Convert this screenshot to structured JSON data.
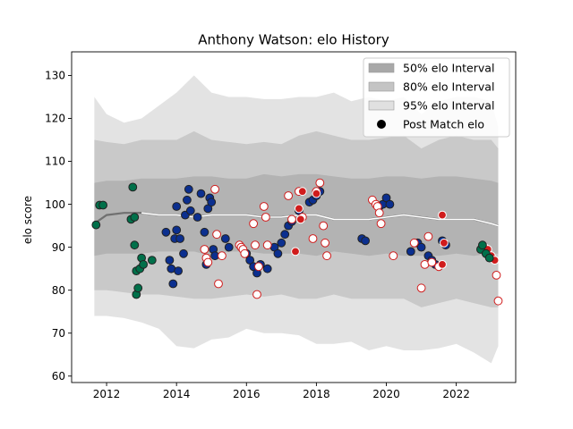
{
  "chart_data": {
    "type": "scatter",
    "title": "Anthony Watson: elo History",
    "xlabel": "",
    "ylabel": "elo score",
    "xlim": [
      2011.0,
      2023.7
    ],
    "ylim": [
      58.5,
      135.5
    ],
    "x_ticks": [
      2012,
      2014,
      2016,
      2018,
      2020,
      2022
    ],
    "x_tick_labels": [
      "2012",
      "2014",
      "2016",
      "2018",
      "2020",
      "2022"
    ],
    "y_ticks": [
      60,
      70,
      80,
      90,
      100,
      110,
      120,
      130
    ],
    "y_tick_labels": [
      "60",
      "70",
      "80",
      "90",
      "100",
      "110",
      "120",
      "130"
    ],
    "grid": false,
    "legend_position": "top-right",
    "legend": [
      {
        "label": "50% elo Interval",
        "kind": "patch",
        "color": "#a8a8a8"
      },
      {
        "label": "80% elo Interval",
        "kind": "patch",
        "color": "#c4c4c4"
      },
      {
        "label": "95% elo Interval",
        "kind": "patch",
        "color": "#e0e0e0"
      },
      {
        "label": "Post Match elo",
        "kind": "marker",
        "color": "#000000"
      }
    ],
    "colors": {
      "band50": "#b3b3b3",
      "band80": "#c9c9c9",
      "band95": "#e3e3e3",
      "median_dark": "#707070",
      "median_light": "#ffffff",
      "green_team": "#00704a",
      "blue_team": "#0b2f8f",
      "red_team": "#d01c1c",
      "marker_edge": "#222222"
    },
    "series": [
      {
        "fill": "#00704a",
        "edge": "#222222",
        "points": [
          [
            2011.7,
            95.2
          ],
          [
            2011.8,
            99.8
          ],
          [
            2011.9,
            99.8
          ],
          [
            2012.7,
            96.5
          ],
          [
            2012.75,
            104.0
          ],
          [
            2012.8,
            90.5
          ],
          [
            2012.8,
            97.0
          ],
          [
            2012.85,
            84.5
          ],
          [
            2012.85,
            79.0
          ],
          [
            2012.9,
            80.5
          ],
          [
            2012.95,
            85.0
          ],
          [
            2013.0,
            87.5
          ],
          [
            2013.05,
            86.0
          ],
          [
            2013.3,
            87.0
          ]
        ]
      },
      {
        "fill": "#0b2f8f",
        "edge": "#222222",
        "points": [
          [
            2013.7,
            93.5
          ],
          [
            2013.8,
            87.0
          ],
          [
            2013.85,
            85.0
          ],
          [
            2013.9,
            81.5
          ],
          [
            2013.95,
            92.0
          ],
          [
            2014.0,
            99.5
          ],
          [
            2014.0,
            94.0
          ],
          [
            2014.05,
            84.5
          ],
          [
            2014.1,
            92.0
          ],
          [
            2014.2,
            88.5
          ],
          [
            2014.25,
            97.5
          ],
          [
            2014.3,
            101.0
          ],
          [
            2014.35,
            103.5
          ],
          [
            2014.4,
            98.5
          ],
          [
            2014.6,
            97.0
          ],
          [
            2014.7,
            102.5
          ],
          [
            2014.8,
            93.5
          ],
          [
            2014.85,
            86.0
          ],
          [
            2014.9,
            99.0
          ],
          [
            2014.95,
            101.5
          ],
          [
            2015.0,
            100.5
          ],
          [
            2015.05,
            89.5
          ],
          [
            2015.1,
            88.0
          ],
          [
            2015.4,
            92.0
          ],
          [
            2015.5,
            90.0
          ],
          [
            2016.0,
            88.5
          ],
          [
            2016.1,
            87.0
          ],
          [
            2016.2,
            85.5
          ],
          [
            2016.3,
            84.0
          ],
          [
            2016.4,
            86.0
          ],
          [
            2016.6,
            85.0
          ],
          [
            2016.8,
            90.0
          ],
          [
            2016.9,
            88.5
          ],
          [
            2017.0,
            91.0
          ],
          [
            2017.1,
            93.0
          ],
          [
            2017.2,
            95.0
          ],
          [
            2017.3,
            96.0
          ],
          [
            2017.5,
            98.5
          ],
          [
            2017.8,
            100.5
          ],
          [
            2017.9,
            101.0
          ],
          [
            2018.0,
            102.0
          ],
          [
            2018.1,
            103.0
          ],
          [
            2019.3,
            92.0
          ],
          [
            2019.4,
            91.5
          ],
          [
            2019.8,
            99.5
          ],
          [
            2019.9,
            100.0
          ],
          [
            2020.0,
            101.5
          ],
          [
            2020.1,
            100.0
          ],
          [
            2020.7,
            89.0
          ],
          [
            2020.9,
            91.0
          ],
          [
            2021.0,
            90.0
          ],
          [
            2021.2,
            88.0
          ],
          [
            2021.3,
            87.0
          ],
          [
            2021.4,
            86.0
          ],
          [
            2021.6,
            91.5
          ],
          [
            2021.7,
            90.5
          ]
        ]
      },
      {
        "fill": "#ffffff",
        "edge": "#d01c1c",
        "points": [
          [
            2014.8,
            89.5
          ],
          [
            2014.85,
            87.5
          ],
          [
            2014.9,
            86.5
          ],
          [
            2015.1,
            103.5
          ],
          [
            2015.15,
            93.0
          ],
          [
            2015.2,
            81.5
          ],
          [
            2015.3,
            88.0
          ],
          [
            2015.8,
            90.5
          ],
          [
            2015.85,
            90.0
          ],
          [
            2015.9,
            89.5
          ],
          [
            2015.95,
            88.5
          ],
          [
            2016.2,
            95.5
          ],
          [
            2016.25,
            90.5
          ],
          [
            2016.3,
            79.0
          ],
          [
            2016.35,
            85.5
          ],
          [
            2016.5,
            99.5
          ],
          [
            2016.55,
            97.0
          ],
          [
            2016.6,
            90.5
          ],
          [
            2017.2,
            102.0
          ],
          [
            2017.3,
            96.5
          ],
          [
            2017.5,
            103.0
          ],
          [
            2017.6,
            97.0
          ],
          [
            2017.9,
            92.0
          ],
          [
            2018.0,
            103.0
          ],
          [
            2018.1,
            105.0
          ],
          [
            2018.2,
            95.0
          ],
          [
            2018.25,
            91.0
          ],
          [
            2018.3,
            88.0
          ],
          [
            2019.6,
            101.0
          ],
          [
            2019.7,
            100.0
          ],
          [
            2019.75,
            99.5
          ],
          [
            2019.8,
            98.0
          ],
          [
            2019.85,
            95.5
          ],
          [
            2020.2,
            88.0
          ],
          [
            2020.8,
            91.0
          ],
          [
            2021.0,
            80.5
          ],
          [
            2021.1,
            86.0
          ],
          [
            2021.2,
            92.5
          ],
          [
            2021.3,
            86.5
          ],
          [
            2021.5,
            85.5
          ],
          [
            2023.15,
            83.5
          ],
          [
            2023.2,
            77.5
          ]
        ]
      },
      {
        "fill": "#d01c1c",
        "edge": "#ffffff",
        "points": [
          [
            2017.4,
            89.0
          ],
          [
            2017.5,
            99.0
          ],
          [
            2017.55,
            96.5
          ],
          [
            2017.6,
            103.0
          ],
          [
            2018.0,
            102.5
          ],
          [
            2021.6,
            97.5
          ],
          [
            2021.6,
            86.0
          ],
          [
            2021.65,
            91.0
          ],
          [
            2022.8,
            90.0
          ],
          [
            2022.9,
            89.5
          ],
          [
            2023.0,
            88.0
          ],
          [
            2023.1,
            87.0
          ]
        ]
      },
      {
        "fill": "#00704a",
        "edge": "#222222",
        "points": [
          [
            2022.7,
            89.5
          ],
          [
            2022.75,
            90.5
          ],
          [
            2022.85,
            88.5
          ],
          [
            2022.95,
            87.5
          ]
        ]
      }
    ],
    "band_x": [
      2011.65,
      2012.0,
      2012.5,
      2013.0,
      2013.5,
      2014.0,
      2014.5,
      2015.0,
      2015.5,
      2016.0,
      2016.5,
      2017.0,
      2017.5,
      2018.0,
      2018.5,
      2019.0,
      2019.5,
      2020.0,
      2020.5,
      2021.0,
      2021.5,
      2022.0,
      2022.5,
      2023.0,
      2023.2
    ],
    "band95": {
      "upper": [
        125.0,
        121.0,
        119.0,
        120.0,
        123.0,
        126.0,
        130.0,
        126.0,
        125.0,
        125.0,
        124.5,
        124.5,
        125.0,
        125.0,
        126.0,
        124.0,
        125.0,
        124.0,
        125.0,
        121.0,
        124.0,
        125.0,
        125.0,
        124.0,
        118.0
      ],
      "lower": [
        74.0,
        74.0,
        73.5,
        72.5,
        71.0,
        67.0,
        66.5,
        68.5,
        69.0,
        71.0,
        70.0,
        70.0,
        69.5,
        67.5,
        67.5,
        68.0,
        66.0,
        67.0,
        66.0,
        66.0,
        66.5,
        67.5,
        65.5,
        63.0,
        67.0
      ]
    },
    "band80": {
      "upper": [
        115.0,
        114.5,
        114.0,
        115.0,
        115.0,
        115.0,
        117.0,
        115.0,
        114.5,
        114.0,
        114.5,
        114.0,
        116.0,
        117.0,
        116.0,
        115.0,
        115.0,
        115.5,
        116.0,
        113.0,
        115.0,
        116.0,
        115.0,
        115.0,
        113.0
      ],
      "lower": [
        80.0,
        80.0,
        79.5,
        79.0,
        79.0,
        78.5,
        78.0,
        78.0,
        78.5,
        79.0,
        78.5,
        79.0,
        78.0,
        78.0,
        79.0,
        78.0,
        78.0,
        78.0,
        78.0,
        76.0,
        77.0,
        78.0,
        77.0,
        76.0,
        76.0
      ]
    },
    "band50": {
      "upper": [
        105.0,
        105.5,
        105.5,
        106.0,
        106.0,
        106.0,
        106.5,
        106.5,
        106.0,
        106.0,
        107.0,
        106.5,
        107.0,
        107.0,
        106.5,
        106.0,
        106.0,
        106.5,
        106.5,
        106.0,
        106.5,
        106.5,
        106.0,
        105.5,
        105.0
      ],
      "lower": [
        88.0,
        88.5,
        88.5,
        88.5,
        89.0,
        89.0,
        89.0,
        88.0,
        89.0,
        89.0,
        88.5,
        88.5,
        88.5,
        88.0,
        89.0,
        88.5,
        88.0,
        88.5,
        88.0,
        88.0,
        88.0,
        88.5,
        88.0,
        88.5,
        88.5
      ]
    },
    "median": [
      95.5,
      97.5,
      98.0,
      98.0,
      97.5,
      97.5,
      97.0,
      97.5,
      97.5,
      97.5,
      97.0,
      97.0,
      97.5,
      97.5,
      96.5,
      96.5,
      96.5,
      97.0,
      97.5,
      97.0,
      96.5,
      96.5,
      96.5,
      95.5,
      95.0
    ]
  }
}
